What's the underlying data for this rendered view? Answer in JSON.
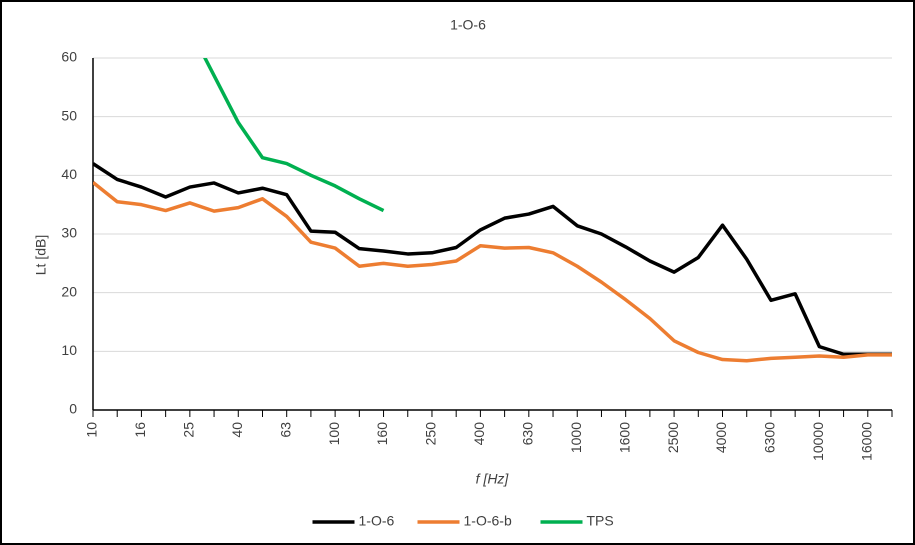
{
  "chart_data": {
    "type": "line",
    "title": "1-O-6",
    "x_label": "f [Hz]",
    "y_label": "Lt [dB]",
    "categories": [
      "10",
      null,
      "16",
      null,
      "25",
      null,
      "40",
      null,
      "63",
      null,
      "100",
      null,
      "160",
      null,
      "250",
      null,
      "400",
      null,
      "630",
      null,
      "1000",
      null,
      "1600",
      null,
      "2500",
      null,
      "4000",
      null,
      "6300",
      null,
      "10000",
      null,
      "16000",
      null
    ],
    "ylim": [
      0,
      60
    ],
    "yticks": [
      0,
      10,
      20,
      30,
      40,
      50,
      60
    ],
    "grid": true,
    "legend": "bottom",
    "series": [
      {
        "name": "1-O-6",
        "color": "#000000",
        "values": [
          42,
          39.3,
          38,
          36.3,
          38,
          38.7,
          37,
          37.8,
          36.7,
          30.5,
          30.3,
          27.5,
          27.1,
          26.6,
          26.8,
          27.7,
          30.7,
          32.7,
          33.4,
          34.7,
          31.4,
          30,
          27.8,
          25.4,
          23.5,
          26,
          31.5,
          25.7,
          18.7,
          19.8,
          10.8,
          9.5,
          9.5,
          9.5
        ]
      },
      {
        "name": "1-O-6-b",
        "color": "#ed7d31",
        "values": [
          38.8,
          35.5,
          35,
          34,
          35.3,
          33.9,
          34.5,
          36,
          33,
          28.6,
          27.6,
          24.5,
          25,
          24.5,
          24.8,
          25.4,
          28,
          27.6,
          27.7,
          26.8,
          24.5,
          21.8,
          18.8,
          15.6,
          11.8,
          9.8,
          8.6,
          8.4,
          8.8,
          9,
          9.2,
          9,
          9.4,
          9.4
        ]
      },
      {
        "name": "TPS",
        "color": "#00b050",
        "values": [
          null,
          null,
          null,
          null,
          65,
          57,
          49,
          43,
          42,
          40,
          38.2,
          36,
          34,
          null,
          null,
          null,
          null,
          null,
          null,
          null,
          null,
          null,
          null,
          null,
          null,
          null,
          null,
          null,
          null,
          null,
          null,
          null,
          null,
          null
        ]
      }
    ]
  }
}
